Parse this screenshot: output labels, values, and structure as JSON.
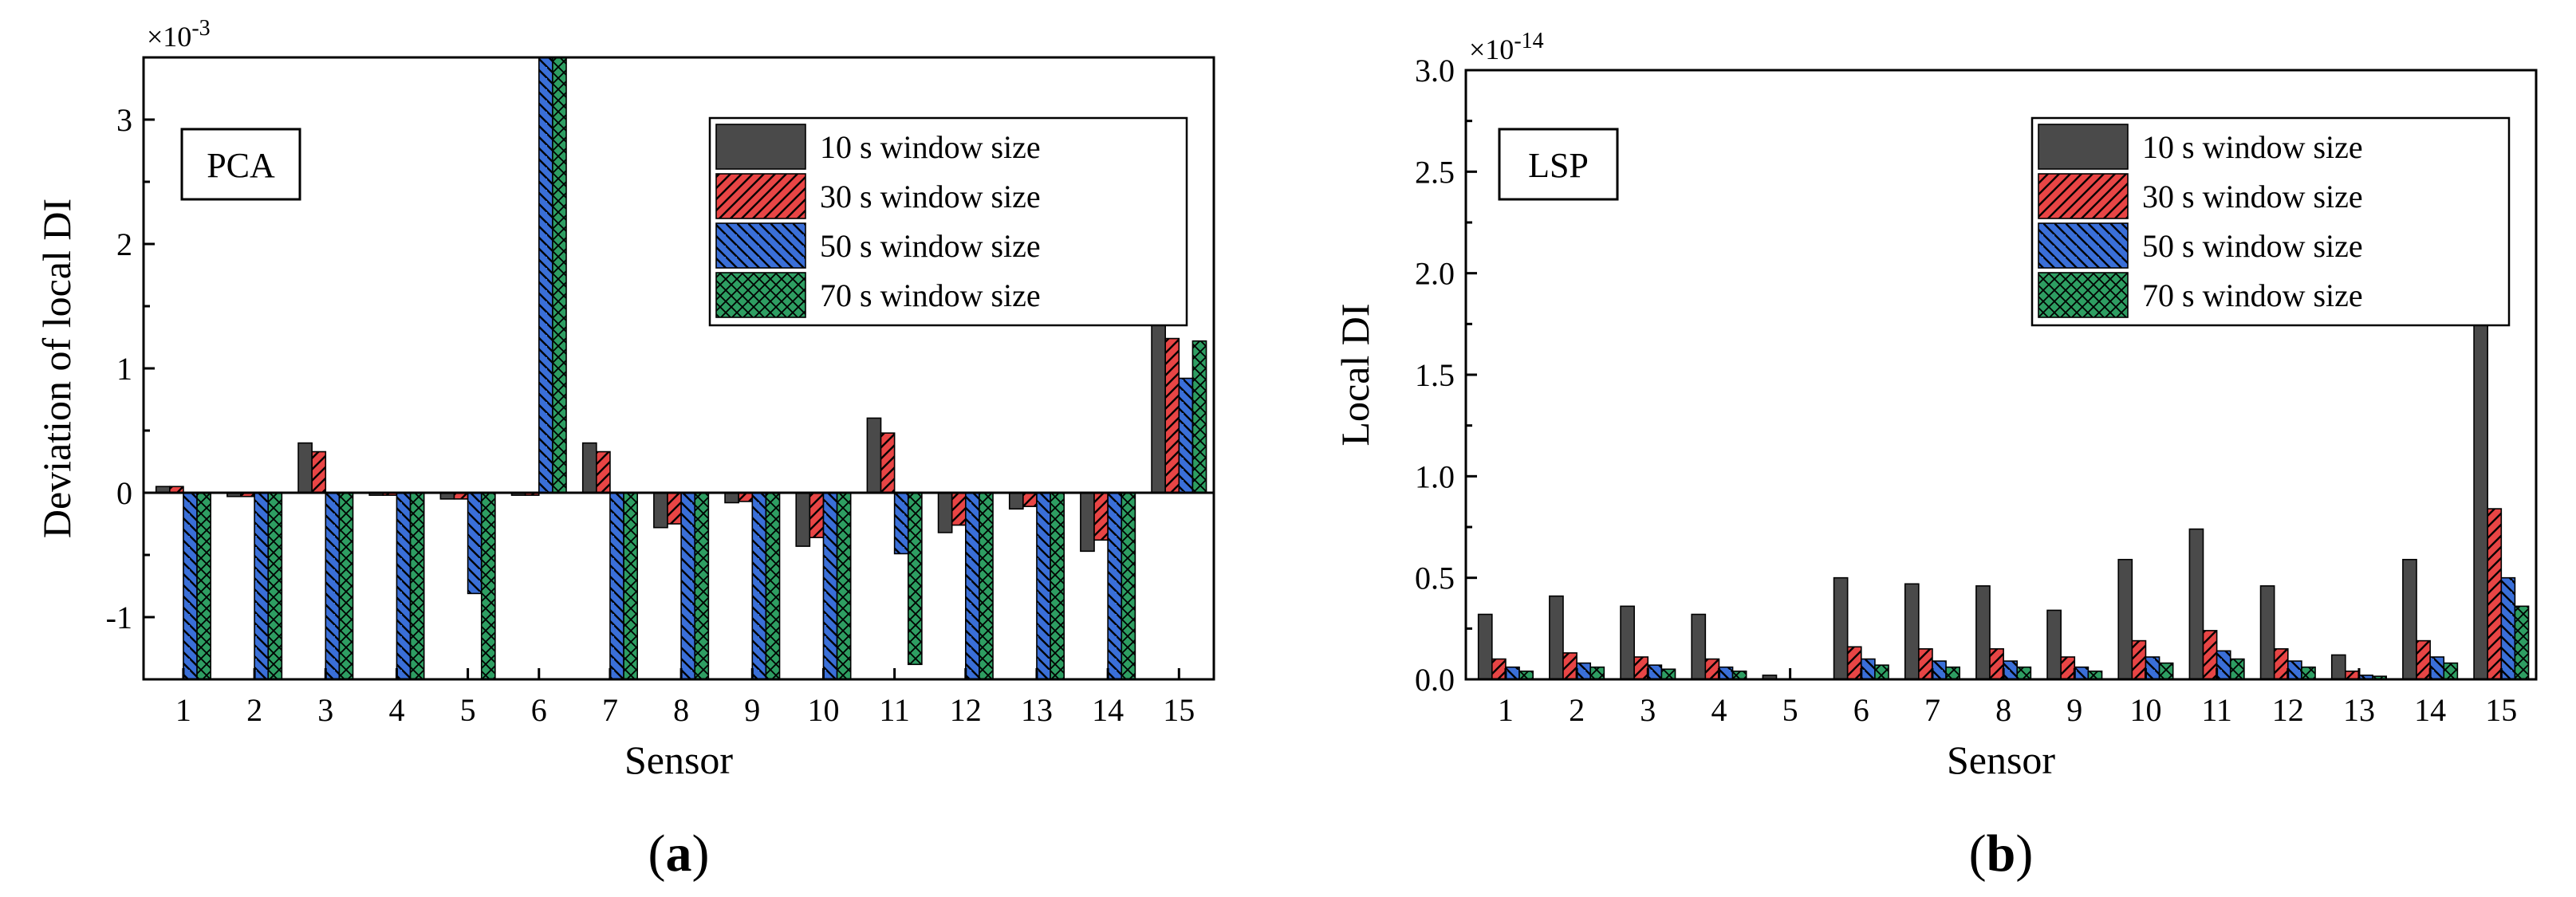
{
  "chart_data": [
    {
      "type": "bar",
      "panel_label": "(a)",
      "panel_letter": "a",
      "tag": "PCA",
      "xlabel": "Sensor",
      "ylabel": "Deviation of local DI",
      "exponent_label": "×10",
      "exponent": "-3",
      "ylim": [
        -1.5,
        3.5
      ],
      "yticks": [
        -1,
        0,
        1,
        2,
        3
      ],
      "ytick_labels": [
        "-1",
        "0",
        "1",
        "2",
        "3"
      ],
      "categories": [
        "1",
        "2",
        "3",
        "4",
        "5",
        "6",
        "7",
        "8",
        "9",
        "10",
        "11",
        "12",
        "13",
        "14",
        "15"
      ],
      "series": [
        {
          "name": "10 s window size",
          "color": "#4a4a4a",
          "pattern": "solid",
          "values": [
            0.05,
            -0.03,
            0.4,
            -0.02,
            -0.05,
            -0.02,
            0.4,
            -0.28,
            -0.08,
            -0.43,
            0.6,
            -0.32,
            -0.13,
            -0.47,
            1.51
          ]
        },
        {
          "name": "30 s window size",
          "color": "#e84545",
          "pattern": "hatch-fwd",
          "values": [
            0.05,
            -0.03,
            0.33,
            -0.02,
            -0.05,
            -0.02,
            0.33,
            -0.25,
            -0.07,
            -0.36,
            0.48,
            -0.26,
            -0.11,
            -0.38,
            1.24
          ]
        },
        {
          "name": "50 s window size",
          "color": "#3a6fd8",
          "pattern": "hatch-back",
          "values": [
            -1.5,
            -1.5,
            -1.5,
            -1.5,
            -0.81,
            3.5,
            -1.5,
            -1.5,
            -1.5,
            -1.5,
            -0.49,
            -1.5,
            -1.5,
            -1.5,
            0.92
          ]
        },
        {
          "name": "70 s window size",
          "color": "#2e9e62",
          "pattern": "crosshatch",
          "values": [
            -1.5,
            -1.5,
            -1.5,
            -1.5,
            -1.5,
            3.5,
            -1.5,
            -1.5,
            -1.5,
            -1.5,
            -1.38,
            -1.5,
            -1.5,
            -1.5,
            1.22
          ]
        }
      ],
      "legend_position": "top-right"
    },
    {
      "type": "bar",
      "panel_label": "(b)",
      "panel_letter": "b",
      "tag": "LSP",
      "xlabel": "Sensor",
      "ylabel": "Local DI",
      "exponent_label": "×10",
      "exponent": "-14",
      "ylim": [
        0,
        3.0
      ],
      "yticks": [
        0,
        0.5,
        1.0,
        1.5,
        2.0,
        2.5,
        3.0
      ],
      "ytick_labels": [
        "0.0",
        "0.5",
        "1.0",
        "1.5",
        "2.0",
        "2.5",
        "3.0"
      ],
      "categories": [
        "1",
        "2",
        "3",
        "4",
        "5",
        "6",
        "7",
        "8",
        "9",
        "10",
        "11",
        "12",
        "13",
        "14",
        "15"
      ],
      "series": [
        {
          "name": "10 s window size",
          "color": "#4a4a4a",
          "pattern": "solid",
          "values": [
            0.32,
            0.41,
            0.36,
            0.32,
            0.02,
            0.5,
            0.47,
            0.46,
            0.34,
            0.59,
            0.74,
            0.46,
            0.12,
            0.59,
            2.64
          ]
        },
        {
          "name": "30 s window size",
          "color": "#e84545",
          "pattern": "hatch-fwd",
          "values": [
            0.1,
            0.13,
            0.11,
            0.1,
            0.0,
            0.16,
            0.15,
            0.15,
            0.11,
            0.19,
            0.24,
            0.15,
            0.04,
            0.19,
            0.84
          ]
        },
        {
          "name": "50 s window size",
          "color": "#3a6fd8",
          "pattern": "hatch-back",
          "values": [
            0.06,
            0.08,
            0.07,
            0.06,
            0.0,
            0.1,
            0.09,
            0.09,
            0.06,
            0.11,
            0.14,
            0.09,
            0.02,
            0.11,
            0.5
          ]
        },
        {
          "name": "70 s window size",
          "color": "#2e9e62",
          "pattern": "crosshatch",
          "values": [
            0.04,
            0.06,
            0.05,
            0.04,
            0.0,
            0.07,
            0.06,
            0.06,
            0.04,
            0.08,
            0.1,
            0.06,
            0.015,
            0.08,
            0.36
          ]
        }
      ],
      "legend_position": "top-right"
    }
  ]
}
